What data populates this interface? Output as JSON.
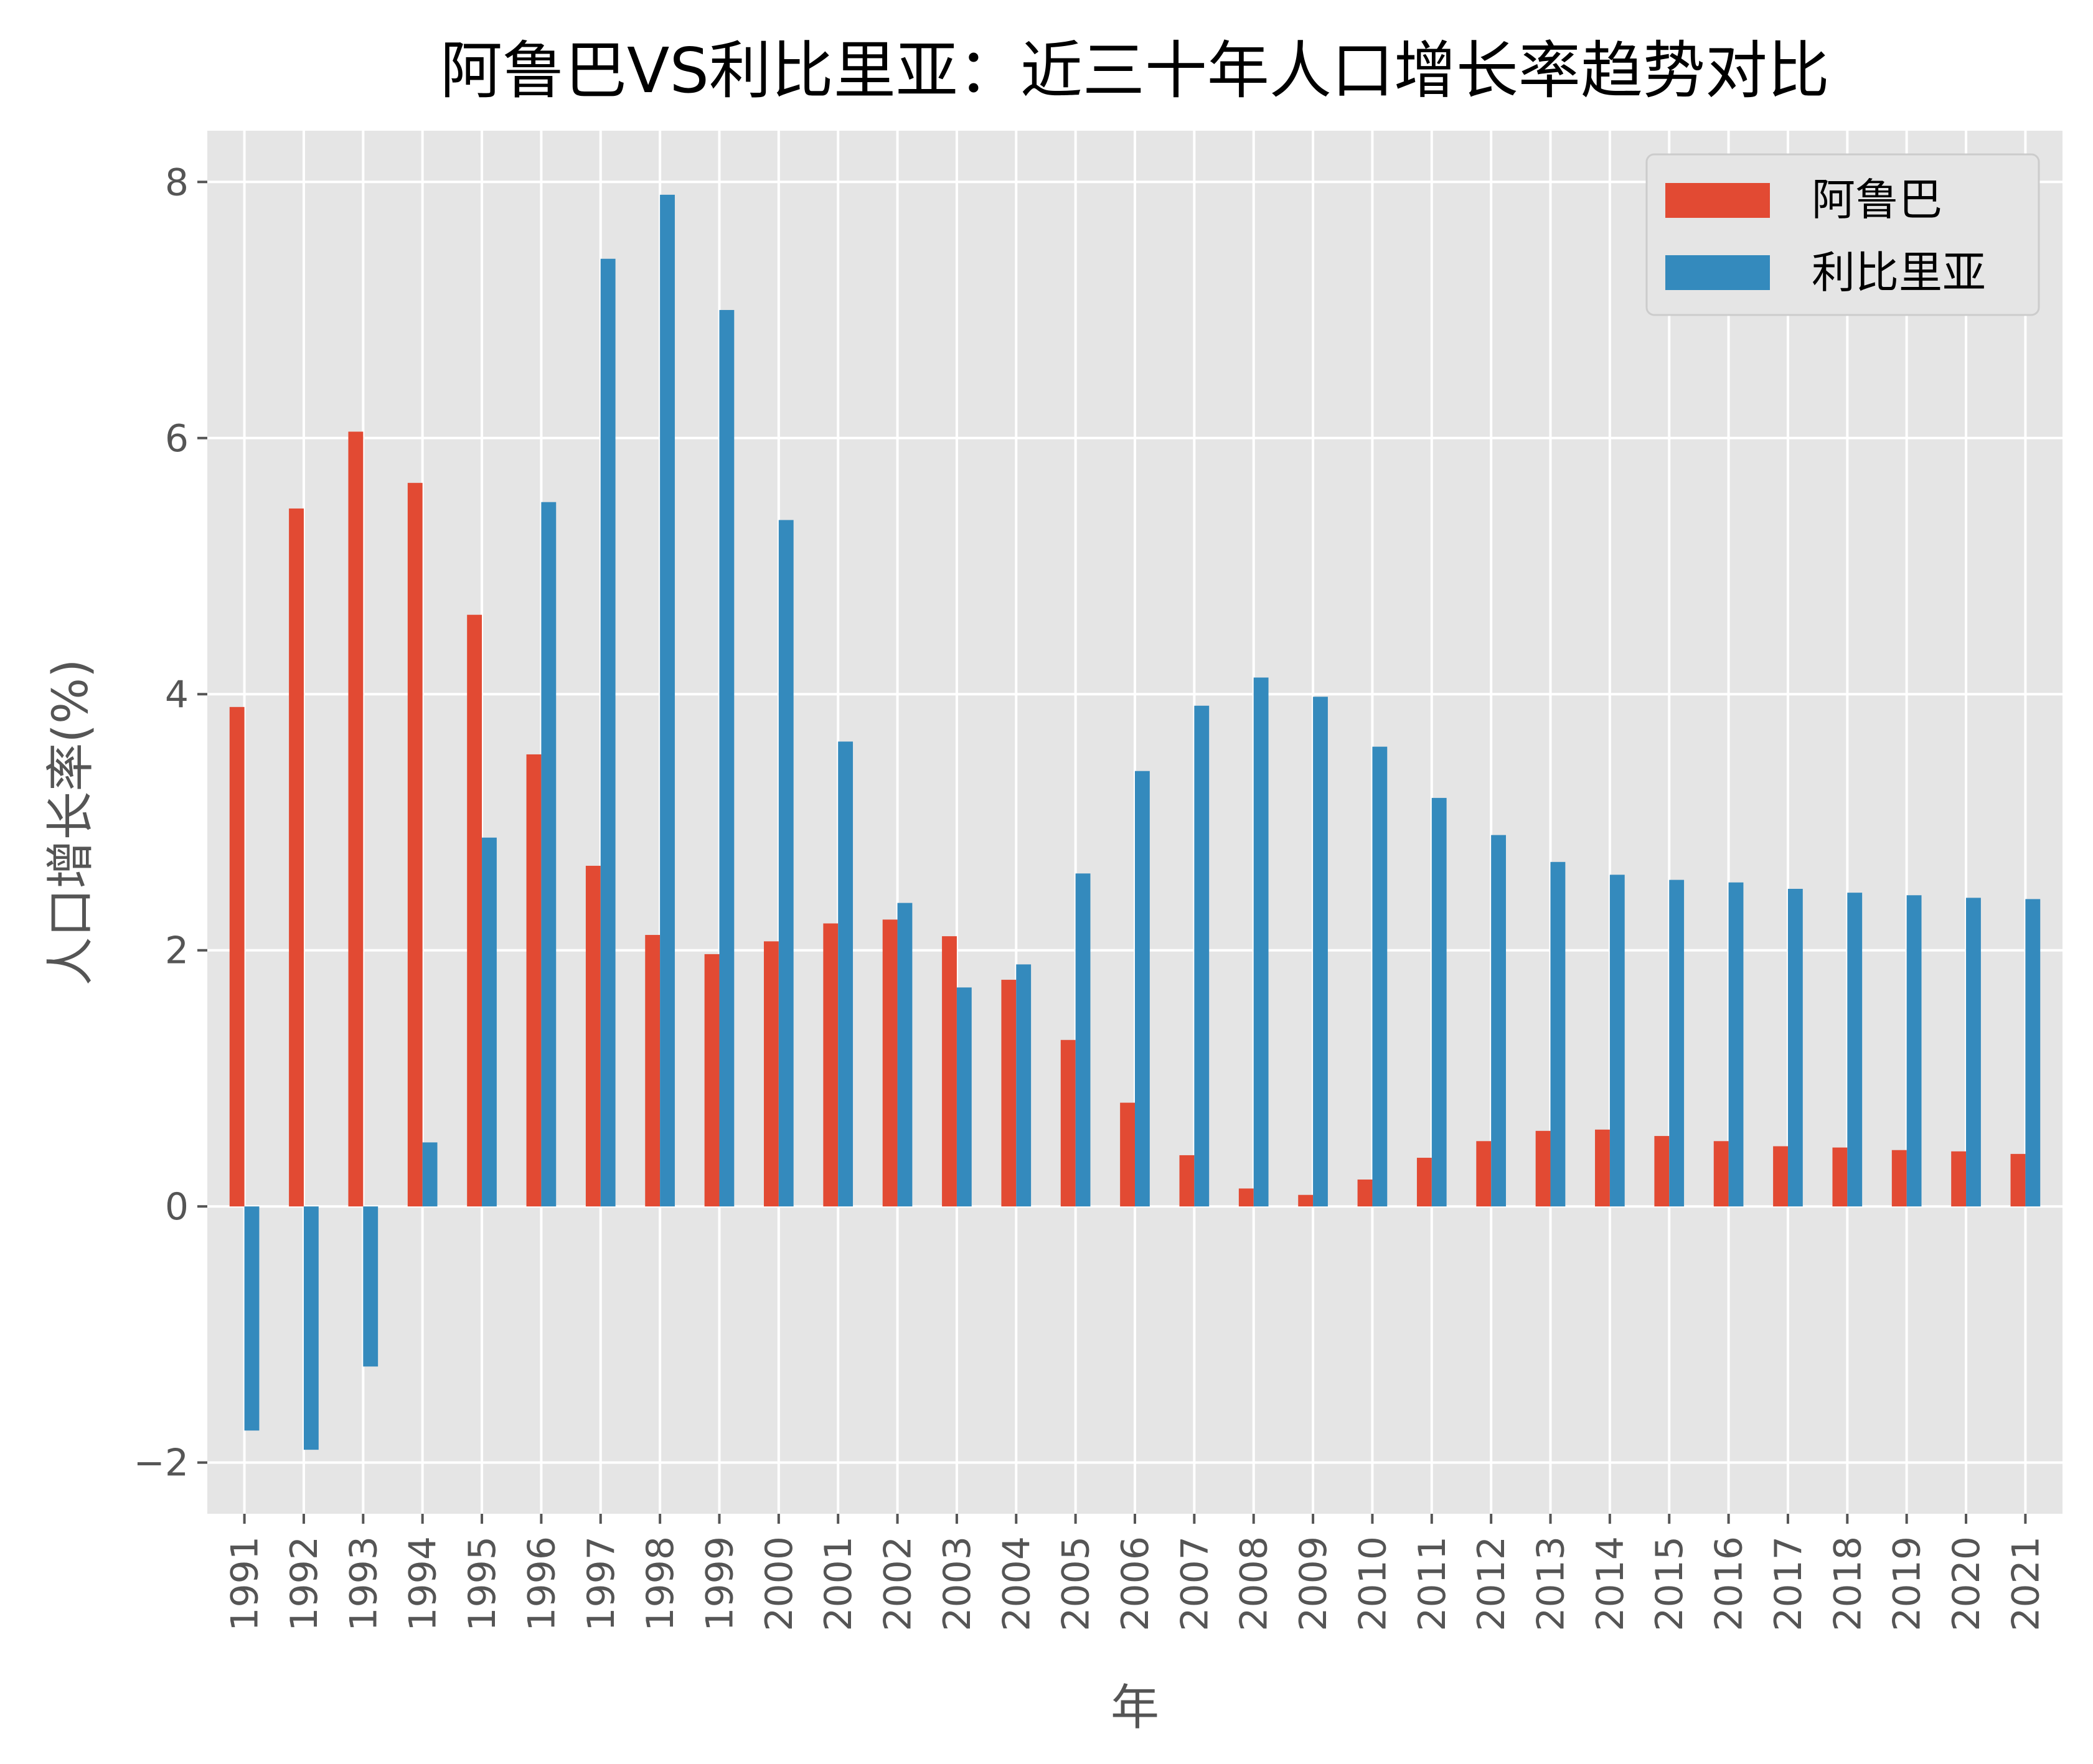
{
  "chart_data": {
    "type": "bar",
    "title": "阿鲁巴VS利比里亚：近三十年人口增长率趋势对比",
    "xlabel": "年",
    "ylabel": "人口增长率(%)",
    "ylim": [
      -2.4,
      8.4
    ],
    "yticks": [
      -2,
      0,
      2,
      4,
      6,
      8
    ],
    "yticklabels": [
      "−2",
      "0",
      "2",
      "4",
      "6",
      "8"
    ],
    "grid": true,
    "legend_position": "top-right",
    "categories": [
      "1991",
      "1992",
      "1993",
      "1994",
      "1995",
      "1996",
      "1997",
      "1998",
      "1999",
      "2000",
      "2001",
      "2002",
      "2003",
      "2004",
      "2005",
      "2006",
      "2007",
      "2008",
      "2009",
      "2010",
      "2011",
      "2012",
      "2013",
      "2014",
      "2015",
      "2016",
      "2017",
      "2018",
      "2019",
      "2020",
      "2021"
    ],
    "series": [
      {
        "name": "阿鲁巴",
        "color": "#e24a33",
        "values": [
          3.9,
          5.45,
          6.05,
          5.65,
          4.62,
          3.53,
          2.66,
          2.12,
          1.97,
          2.07,
          2.21,
          2.24,
          2.11,
          1.77,
          1.3,
          0.81,
          0.4,
          0.14,
          0.09,
          0.21,
          0.38,
          0.51,
          0.59,
          0.6,
          0.55,
          0.51,
          0.47,
          0.46,
          0.44,
          0.43,
          0.41
        ]
      },
      {
        "name": "利比里亚",
        "color": "#348abd",
        "values": [
          -1.75,
          -1.9,
          -1.25,
          0.5,
          2.88,
          5.5,
          7.4,
          7.9,
          7.0,
          5.36,
          3.63,
          2.37,
          1.71,
          1.89,
          2.6,
          3.4,
          3.91,
          4.13,
          3.98,
          3.59,
          3.19,
          2.9,
          2.69,
          2.59,
          2.55,
          2.53,
          2.48,
          2.45,
          2.43,
          2.41,
          2.4
        ]
      }
    ]
  },
  "colors": {
    "plot_background": "#e5e5e5",
    "grid": "#ffffff",
    "text": "#555555"
  }
}
